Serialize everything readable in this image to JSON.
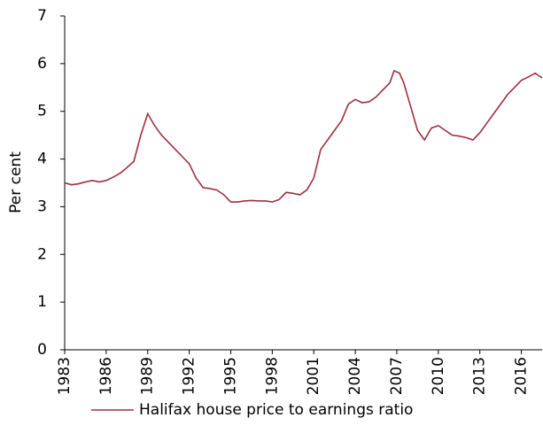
{
  "chart_data": {
    "type": "line",
    "y_label": "Per cent",
    "x": [
      1983,
      1983.5,
      1984,
      1984.5,
      1985,
      1985.5,
      1986,
      1986.5,
      1987,
      1987.5,
      1988,
      1988.5,
      1989,
      1989.5,
      1990,
      1990.5,
      1991,
      1991.5,
      1992,
      1992.5,
      1993,
      1993.5,
      1994,
      1994.5,
      1995,
      1995.5,
      1996,
      1996.5,
      1997,
      1997.5,
      1998,
      1998.5,
      1999,
      1999.5,
      2000,
      2000.5,
      2001,
      2001.5,
      2002,
      2002.5,
      2003,
      2003.5,
      2004,
      2004.5,
      2005,
      2005.5,
      2006,
      2006.5,
      2006.8,
      2007.2,
      2007.5,
      2008,
      2008.5,
      2009,
      2009.5,
      2010,
      2010.5,
      2011,
      2011.5,
      2012,
      2012.5,
      2013,
      2013.5,
      2014,
      2014.5,
      2015,
      2015.5,
      2016,
      2016.5,
      2017,
      2017.5
    ],
    "series": [
      {
        "name": "Halifax house price to earnings ratio",
        "color": "#a0303f",
        "values": [
          3.5,
          3.46,
          3.48,
          3.52,
          3.55,
          3.52,
          3.55,
          3.62,
          3.7,
          3.82,
          3.95,
          4.5,
          4.95,
          4.7,
          4.5,
          4.35,
          4.2,
          4.05,
          3.9,
          3.6,
          3.4,
          3.38,
          3.35,
          3.25,
          3.1,
          3.1,
          3.12,
          3.13,
          3.12,
          3.12,
          3.1,
          3.15,
          3.3,
          3.28,
          3.25,
          3.35,
          3.6,
          4.2,
          4.4,
          4.6,
          4.8,
          5.15,
          5.25,
          5.18,
          5.2,
          5.3,
          5.45,
          5.6,
          5.85,
          5.8,
          5.6,
          5.1,
          4.6,
          4.4,
          4.65,
          4.7,
          4.6,
          4.5,
          4.48,
          4.45,
          4.4,
          4.55,
          4.75,
          4.95,
          5.15,
          5.35,
          5.5,
          5.65,
          5.72,
          5.8,
          5.7
        ]
      }
    ],
    "xlim": [
      1983,
      2017.5
    ],
    "ylim": [
      0,
      7
    ],
    "xticks": [
      1983,
      1986,
      1989,
      1992,
      1995,
      1998,
      2001,
      2004,
      2007,
      2010,
      2013,
      2016
    ],
    "yticks": [
      0,
      1,
      2,
      3,
      4,
      5,
      6,
      7
    ],
    "grid": false,
    "legend": "bottom"
  }
}
